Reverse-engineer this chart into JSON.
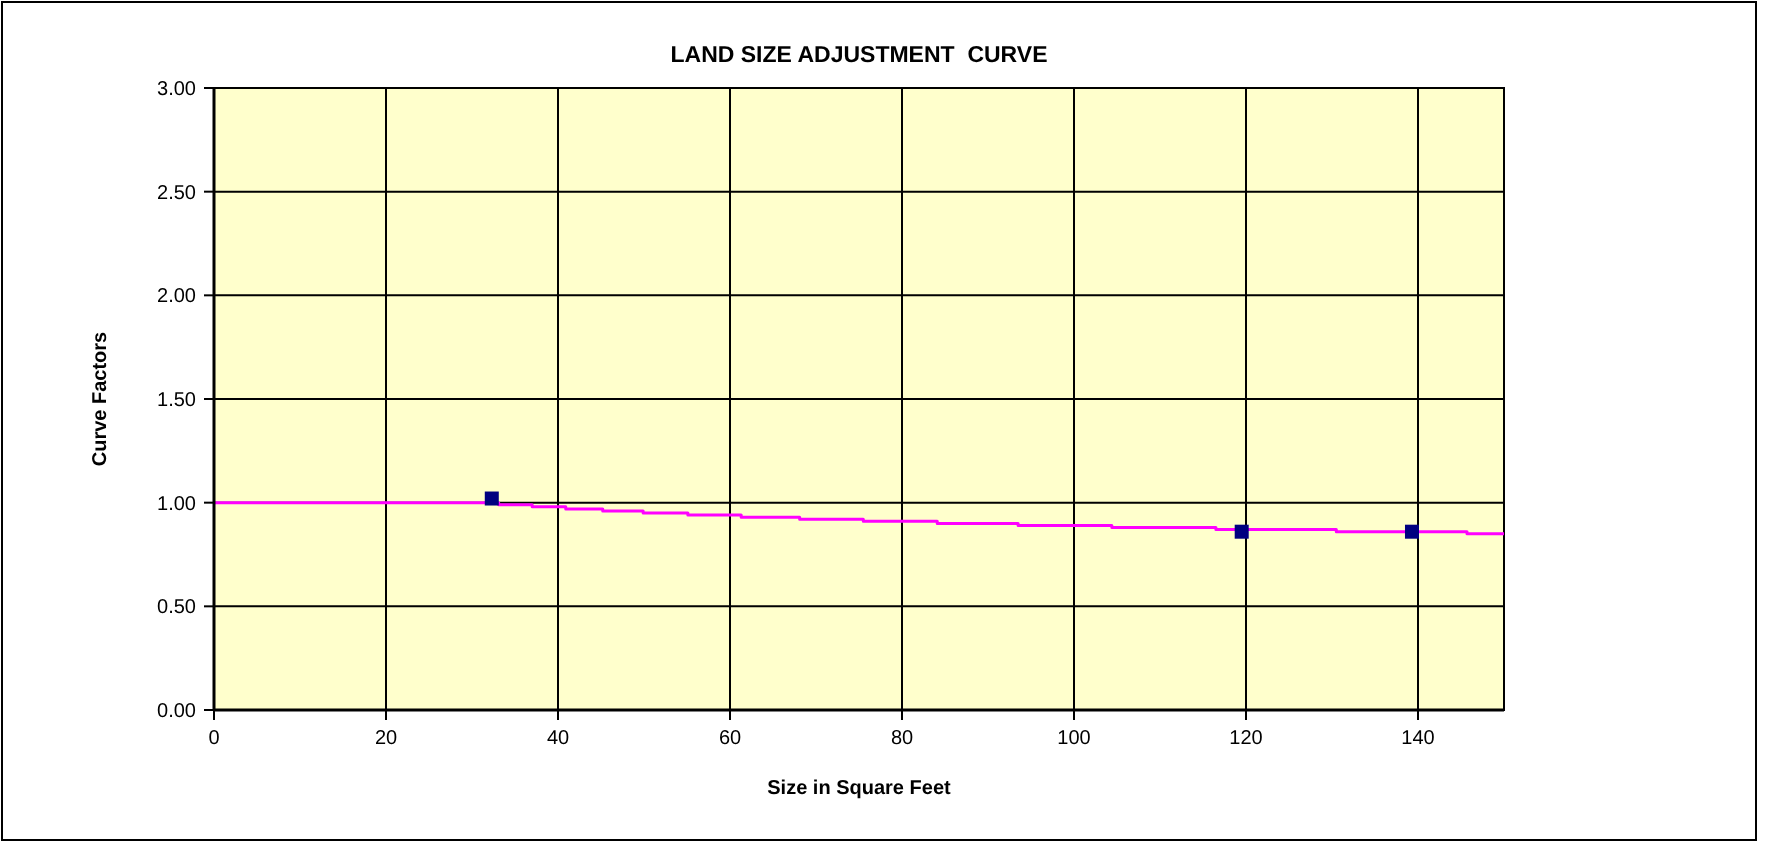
{
  "chart_data": {
    "type": "step",
    "title": "LAND SIZE ADJUSTMENT  CURVE",
    "xlabel": "Size in Square Feet",
    "ylabel": "Curve Factors",
    "xlim": [
      0,
      150
    ],
    "xticks": [
      0,
      20,
      40,
      60,
      80,
      100,
      120,
      140
    ],
    "ylim": [
      0,
      3
    ],
    "yticks": [
      {
        "value": 0,
        "label": "0.00"
      },
      {
        "value": 0.5,
        "label": "0.50"
      },
      {
        "value": 1,
        "label": "1.00"
      },
      {
        "value": 1.5,
        "label": "1.50"
      },
      {
        "value": 2,
        "label": "2.00"
      },
      {
        "value": 2.5,
        "label": "2.50"
      },
      {
        "value": 3,
        "label": "3.00"
      }
    ],
    "grid": true,
    "series": [
      {
        "color": "#ff00ff",
        "marker": "none",
        "x": [
          0,
          33.1,
          37.0,
          40.9,
          45.2,
          49.9,
          55.1,
          61.3,
          68.1,
          75.5,
          84.1,
          93.5,
          104.4,
          116.5,
          130.5,
          145.7,
          150
        ],
        "values": [
          1.0,
          0.99,
          0.98,
          0.97,
          0.96,
          0.95,
          0.94,
          0.93,
          0.92,
          0.91,
          0.9,
          0.89,
          0.88,
          0.87,
          0.86,
          0.85,
          0.85
        ]
      },
      {
        "type": "scatter",
        "color": "#000080",
        "marker": "square",
        "x": [
          32.3,
          119.5,
          139.3
        ],
        "values": [
          1.02,
          0.86,
          0.86
        ]
      }
    ]
  }
}
